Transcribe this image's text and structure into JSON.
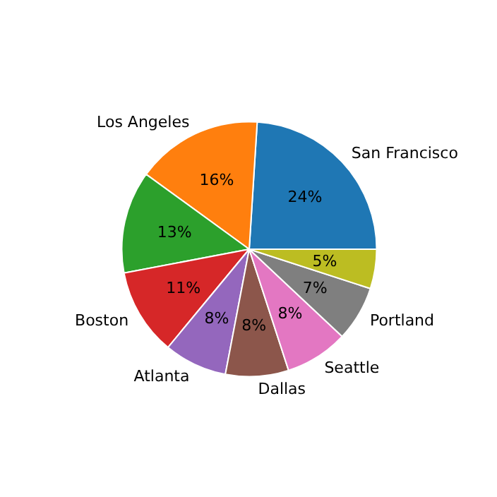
{
  "chart_data": {
    "type": "pie",
    "categories": [
      "San Francisco",
      "Los Angeles",
      null,
      "Boston",
      "Atlanta",
      "Dallas",
      "Seattle",
      "Portland",
      null
    ],
    "values": [
      24,
      16,
      13,
      11,
      8,
      8,
      8,
      7,
      5
    ],
    "value_labels": [
      "24%",
      "16%",
      "13%",
      "11%",
      "8%",
      "8%",
      "8%",
      "7%",
      "5%"
    ],
    "colors": [
      "#1f77b4",
      "#ff7f0e",
      "#2ca02c",
      "#d62728",
      "#9467bd",
      "#8c564b",
      "#e377c2",
      "#7f7f7f",
      "#bcbd22"
    ]
  }
}
